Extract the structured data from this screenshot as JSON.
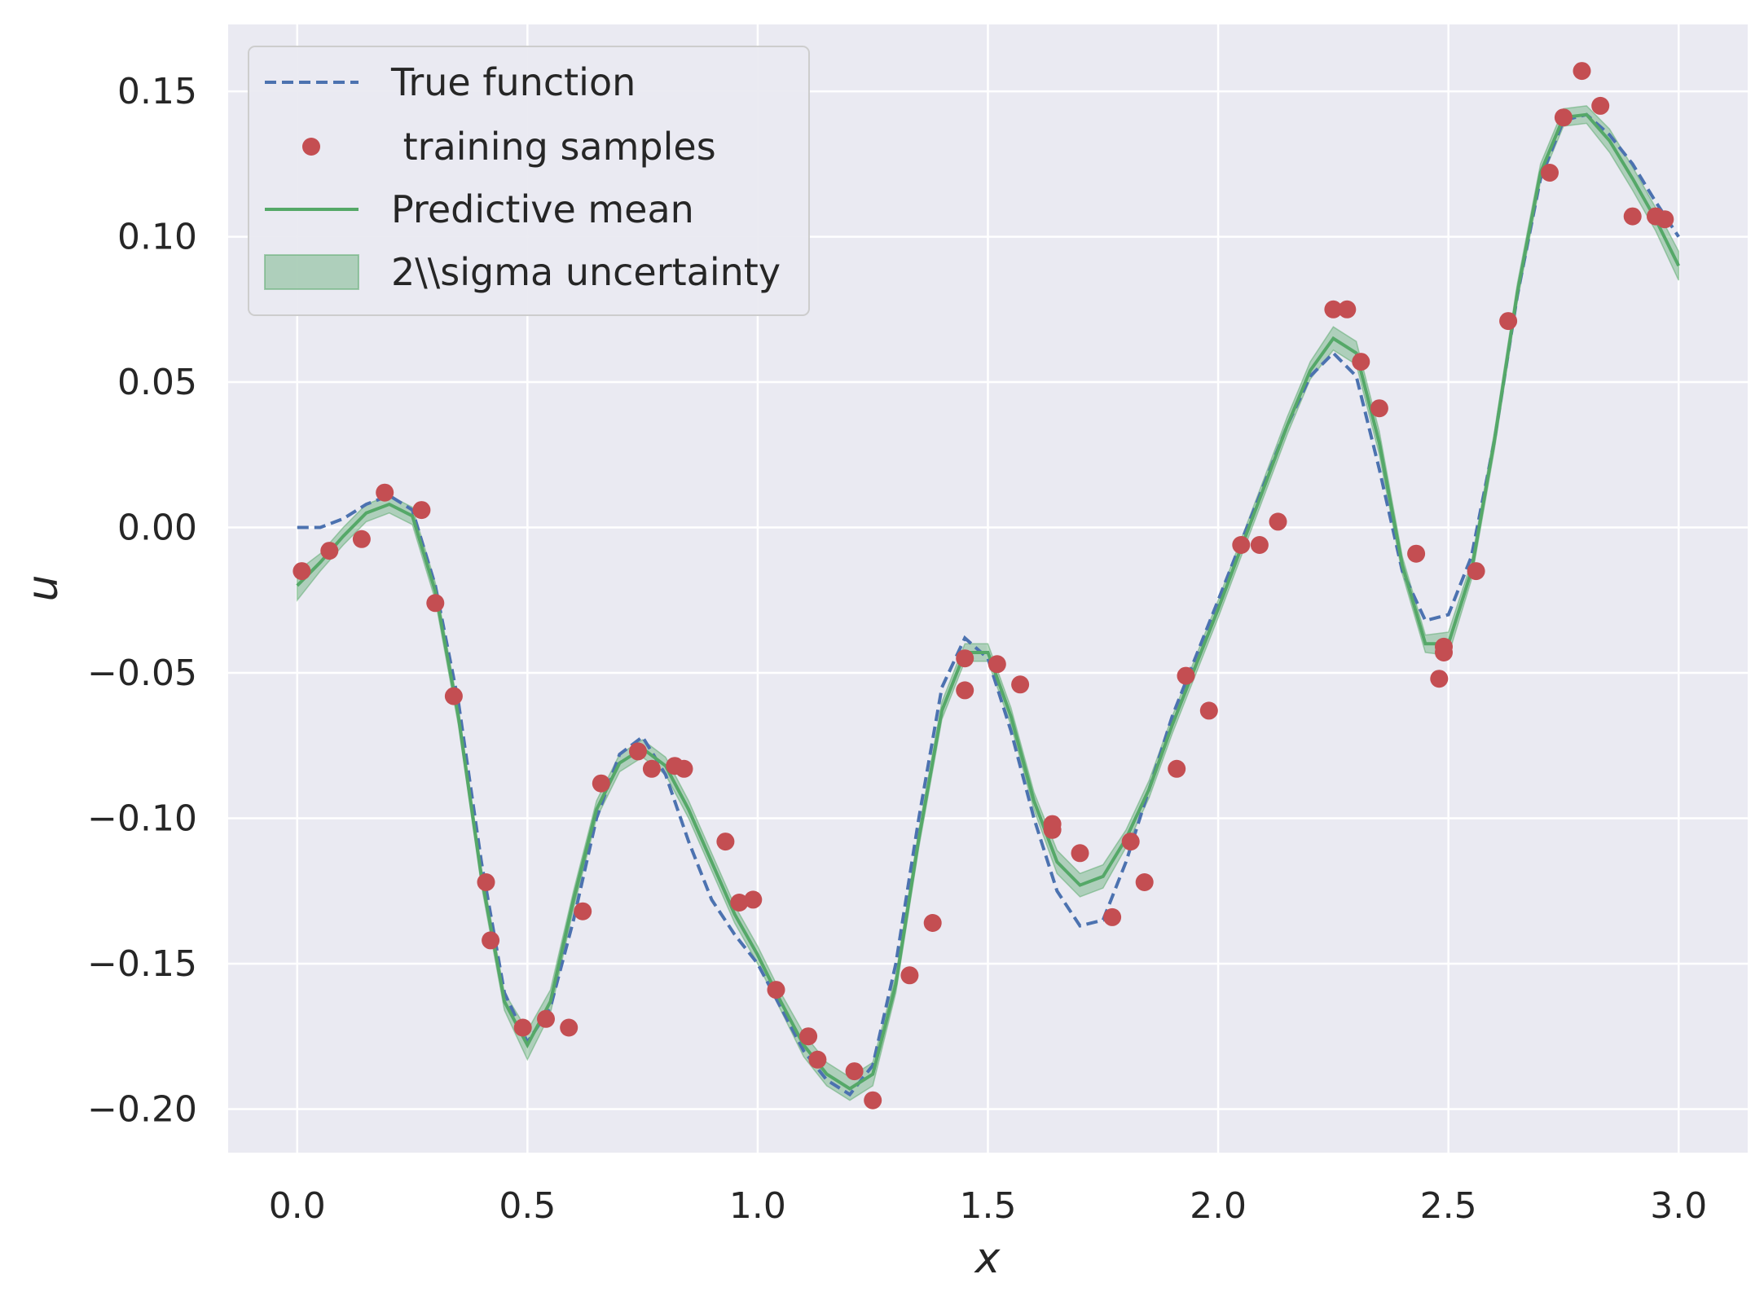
{
  "chart_data": {
    "type": "line",
    "xlabel": "x",
    "ylabel": "u",
    "xlim": [
      -0.15,
      3.15
    ],
    "ylim": [
      -0.215,
      0.173
    ],
    "xticks": [
      0.0,
      0.5,
      1.0,
      1.5,
      2.0,
      2.5,
      3.0
    ],
    "xtick_labels": [
      "0.0",
      "0.5",
      "1.0",
      "1.5",
      "2.0",
      "2.5",
      "3.0"
    ],
    "yticks": [
      -0.2,
      -0.15,
      -0.1,
      -0.05,
      0.0,
      0.05,
      0.1,
      0.15
    ],
    "ytick_labels": [
      "−0.20",
      "−0.15",
      "−0.10",
      "−0.05",
      "0.00",
      "0.05",
      "0.10",
      "0.15"
    ],
    "grid": true,
    "background": "#eaeaf2",
    "legend_position": "upper-left",
    "legend": [
      "True function",
      " training samples",
      "Predictive mean",
      "2\\\\sigma uncertainty"
    ],
    "series": [
      {
        "name": "True function",
        "style": "dashed",
        "color": "#4c72b0",
        "x": [
          0.0,
          0.05,
          0.1,
          0.15,
          0.2,
          0.25,
          0.3,
          0.35,
          0.4,
          0.45,
          0.5,
          0.55,
          0.6,
          0.65,
          0.7,
          0.75,
          0.8,
          0.85,
          0.9,
          0.95,
          1.0,
          1.05,
          1.1,
          1.15,
          1.2,
          1.25,
          1.3,
          1.35,
          1.4,
          1.45,
          1.5,
          1.55,
          1.6,
          1.65,
          1.7,
          1.75,
          1.8,
          1.85,
          1.9,
          1.95,
          2.0,
          2.05,
          2.1,
          2.15,
          2.2,
          2.25,
          2.3,
          2.35,
          2.4,
          2.45,
          2.5,
          2.55,
          2.6,
          2.65,
          2.7,
          2.75,
          2.8,
          2.85,
          2.9,
          2.95,
          3.0
        ],
        "y": [
          0.0,
          0.0,
          0.003,
          0.008,
          0.011,
          0.006,
          -0.02,
          -0.06,
          -0.115,
          -0.16,
          -0.177,
          -0.165,
          -0.135,
          -0.1,
          -0.078,
          -0.072,
          -0.085,
          -0.108,
          -0.128,
          -0.14,
          -0.15,
          -0.165,
          -0.18,
          -0.19,
          -0.195,
          -0.185,
          -0.15,
          -0.1,
          -0.055,
          -0.038,
          -0.045,
          -0.07,
          -0.1,
          -0.125,
          -0.137,
          -0.135,
          -0.115,
          -0.09,
          -0.065,
          -0.045,
          -0.025,
          -0.005,
          0.015,
          0.035,
          0.052,
          0.06,
          0.052,
          0.02,
          -0.015,
          -0.032,
          -0.03,
          -0.01,
          0.03,
          0.08,
          0.12,
          0.14,
          0.142,
          0.135,
          0.125,
          0.112,
          0.1
        ]
      },
      {
        "name": " training samples",
        "style": "markers",
        "color": "#c44e52",
        "x": [
          0.01,
          0.07,
          0.14,
          0.19,
          0.27,
          0.3,
          0.34,
          0.41,
          0.42,
          0.49,
          0.54,
          0.59,
          0.62,
          0.66,
          0.74,
          0.77,
          0.82,
          0.84,
          0.93,
          0.96,
          0.99,
          1.04,
          1.11,
          1.13,
          1.21,
          1.25,
          1.33,
          1.38,
          1.45,
          1.45,
          1.52,
          1.57,
          1.64,
          1.64,
          1.7,
          1.77,
          1.81,
          1.84,
          1.91,
          1.93,
          1.98,
          2.05,
          2.09,
          2.13,
          2.25,
          2.28,
          2.31,
          2.35,
          2.43,
          2.48,
          2.49,
          2.49,
          2.56,
          2.63,
          2.72,
          2.75,
          2.79,
          2.83,
          2.9,
          2.95,
          2.97
        ],
        "y": [
          -0.015,
          -0.008,
          -0.004,
          0.012,
          0.006,
          -0.026,
          -0.058,
          -0.122,
          -0.142,
          -0.172,
          -0.169,
          -0.172,
          -0.132,
          -0.088,
          -0.077,
          -0.083,
          -0.082,
          -0.083,
          -0.108,
          -0.129,
          -0.128,
          -0.159,
          -0.175,
          -0.183,
          -0.187,
          -0.197,
          -0.154,
          -0.136,
          -0.045,
          -0.056,
          -0.047,
          -0.054,
          -0.104,
          -0.102,
          -0.112,
          -0.134,
          -0.108,
          -0.122,
          -0.083,
          -0.051,
          -0.063,
          -0.006,
          -0.006,
          0.002,
          0.075,
          0.075,
          0.057,
          0.041,
          -0.009,
          -0.052,
          -0.041,
          -0.043,
          -0.015,
          0.071,
          0.122,
          0.141,
          0.157,
          0.145,
          0.107,
          0.107,
          0.106
        ]
      },
      {
        "name": "Predictive mean",
        "style": "solid",
        "color": "#55a868",
        "x": [
          0.0,
          0.05,
          0.1,
          0.15,
          0.2,
          0.25,
          0.3,
          0.35,
          0.4,
          0.45,
          0.5,
          0.55,
          0.6,
          0.65,
          0.7,
          0.75,
          0.8,
          0.85,
          0.9,
          0.95,
          1.0,
          1.05,
          1.1,
          1.15,
          1.2,
          1.25,
          1.3,
          1.35,
          1.4,
          1.45,
          1.5,
          1.55,
          1.6,
          1.65,
          1.7,
          1.75,
          1.8,
          1.85,
          1.9,
          1.95,
          2.0,
          2.05,
          2.1,
          2.15,
          2.2,
          2.25,
          2.3,
          2.35,
          2.4,
          2.45,
          2.5,
          2.55,
          2.6,
          2.65,
          2.7,
          2.75,
          2.8,
          2.85,
          2.9,
          2.95,
          3.0
        ],
        "y": [
          -0.02,
          -0.012,
          -0.003,
          0.005,
          0.008,
          0.004,
          -0.022,
          -0.065,
          -0.12,
          -0.163,
          -0.178,
          -0.163,
          -0.128,
          -0.097,
          -0.081,
          -0.076,
          -0.082,
          -0.097,
          -0.115,
          -0.133,
          -0.147,
          -0.163,
          -0.178,
          -0.188,
          -0.193,
          -0.188,
          -0.157,
          -0.107,
          -0.063,
          -0.043,
          -0.043,
          -0.065,
          -0.094,
          -0.115,
          -0.123,
          -0.12,
          -0.107,
          -0.09,
          -0.068,
          -0.048,
          -0.028,
          -0.007,
          0.014,
          0.035,
          0.054,
          0.065,
          0.06,
          0.029,
          -0.013,
          -0.04,
          -0.04,
          -0.015,
          0.03,
          0.081,
          0.122,
          0.141,
          0.142,
          0.133,
          0.12,
          0.106,
          0.09
        ]
      },
      {
        "name": "2\\\\sigma uncertainty",
        "style": "band",
        "color": "#55a868",
        "x": [
          0.0,
          0.05,
          0.1,
          0.15,
          0.2,
          0.25,
          0.3,
          0.35,
          0.4,
          0.45,
          0.5,
          0.55,
          0.6,
          0.65,
          0.7,
          0.75,
          0.8,
          0.85,
          0.9,
          0.95,
          1.0,
          1.05,
          1.1,
          1.15,
          1.2,
          1.25,
          1.3,
          1.35,
          1.4,
          1.45,
          1.5,
          1.55,
          1.6,
          1.65,
          1.7,
          1.75,
          1.8,
          1.85,
          1.9,
          1.95,
          2.0,
          2.05,
          2.1,
          2.15,
          2.2,
          2.25,
          2.3,
          2.35,
          2.4,
          2.45,
          2.5,
          2.55,
          2.6,
          2.65,
          2.7,
          2.75,
          2.8,
          2.85,
          2.9,
          2.95,
          3.0
        ],
        "lower": [
          -0.025,
          -0.015,
          -0.006,
          0.002,
          0.005,
          0.001,
          -0.025,
          -0.068,
          -0.123,
          -0.166,
          -0.183,
          -0.167,
          -0.131,
          -0.1,
          -0.084,
          -0.079,
          -0.085,
          -0.1,
          -0.118,
          -0.136,
          -0.15,
          -0.166,
          -0.182,
          -0.192,
          -0.197,
          -0.192,
          -0.16,
          -0.11,
          -0.066,
          -0.046,
          -0.046,
          -0.068,
          -0.097,
          -0.119,
          -0.127,
          -0.124,
          -0.11,
          -0.093,
          -0.071,
          -0.051,
          -0.031,
          -0.01,
          0.011,
          0.032,
          0.051,
          0.061,
          0.056,
          0.025,
          -0.016,
          -0.043,
          -0.044,
          -0.018,
          0.027,
          0.078,
          0.119,
          0.138,
          0.139,
          0.129,
          0.116,
          0.102,
          0.085
        ],
        "upper": [
          -0.015,
          -0.009,
          0.0,
          0.008,
          0.011,
          0.007,
          -0.019,
          -0.062,
          -0.117,
          -0.16,
          -0.173,
          -0.159,
          -0.125,
          -0.094,
          -0.078,
          -0.073,
          -0.079,
          -0.094,
          -0.112,
          -0.13,
          -0.144,
          -0.16,
          -0.174,
          -0.184,
          -0.189,
          -0.184,
          -0.154,
          -0.104,
          -0.06,
          -0.04,
          -0.04,
          -0.062,
          -0.091,
          -0.111,
          -0.119,
          -0.116,
          -0.104,
          -0.087,
          -0.065,
          -0.045,
          -0.025,
          -0.004,
          0.017,
          0.038,
          0.057,
          0.069,
          0.064,
          0.033,
          -0.01,
          -0.037,
          -0.036,
          -0.012,
          0.033,
          0.084,
          0.125,
          0.144,
          0.145,
          0.137,
          0.124,
          0.11,
          0.095
        ]
      }
    ]
  }
}
